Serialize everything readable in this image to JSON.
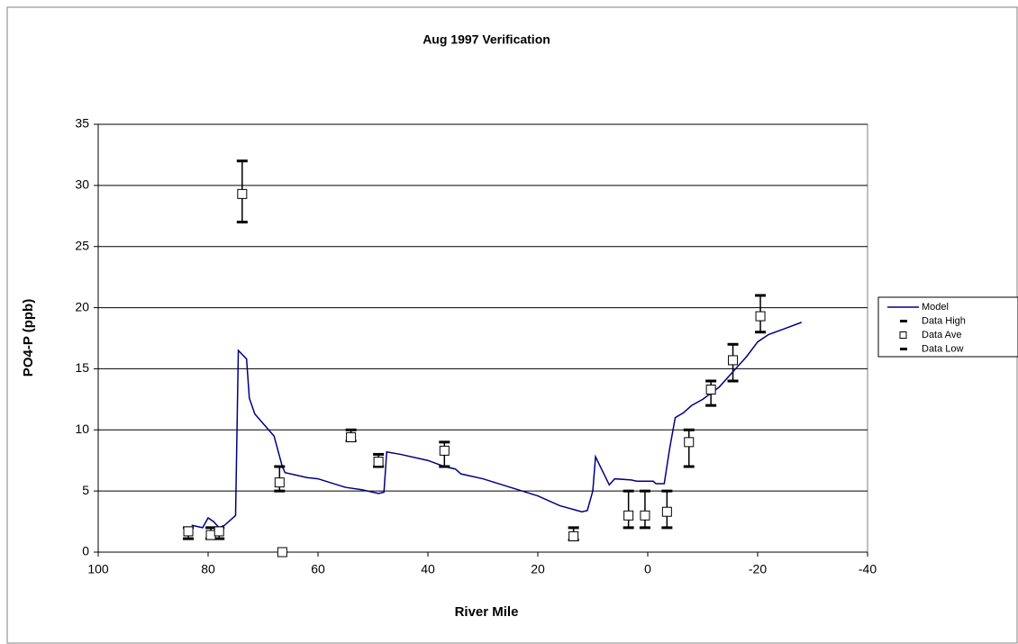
{
  "chart_data": {
    "type": "line",
    "title": "Aug 1997 Verification",
    "x_label": "River Mile",
    "y_label": "PO4-P (ppb)",
    "xlim": [
      100,
      -40
    ],
    "xticks": [
      100,
      80,
      60,
      40,
      20,
      0,
      -20,
      -40
    ],
    "ylim": [
      0,
      35
    ],
    "yticks": [
      0,
      5,
      10,
      15,
      20,
      25,
      30,
      35
    ],
    "grid": true,
    "legend": "right",
    "series": [
      {
        "name": "Model",
        "marker": "line",
        "color": "#000080",
        "x": [
          83,
          81,
          80,
          79,
          78,
          77,
          75,
          74.5,
          73,
          72.5,
          71.5,
          68,
          66.5,
          66,
          62,
          60,
          55,
          52,
          49,
          48,
          47.5,
          45,
          40,
          37,
          35,
          34,
          30,
          25,
          20,
          16,
          12,
          11,
          10,
          9.5,
          7,
          6,
          3,
          2,
          -1,
          -1.5,
          -3,
          -4,
          -5,
          -6.5,
          -8,
          -10,
          -13,
          -16,
          -18,
          -20,
          -22,
          -25,
          -28
        ],
        "values": [
          2.2,
          2.0,
          2.8,
          2.5,
          2.0,
          2.2,
          3.0,
          16.5,
          15.8,
          12.6,
          11.3,
          9.5,
          7.0,
          6.5,
          6.1,
          6.0,
          5.3,
          5.1,
          4.8,
          4.9,
          8.2,
          8.0,
          7.5,
          7.0,
          6.8,
          6.4,
          6.0,
          5.3,
          4.6,
          3.8,
          3.3,
          3.4,
          5.0,
          7.8,
          5.5,
          6.0,
          5.9,
          5.8,
          5.8,
          5.6,
          5.6,
          8.5,
          11.0,
          11.4,
          12.0,
          12.5,
          13.5,
          15.0,
          16.0,
          17.2,
          17.8,
          18.3,
          18.8
        ]
      },
      {
        "name": "Data High",
        "marker": "dash",
        "color": "#000000",
        "x": [
          83.6,
          79.5,
          78,
          73.8,
          67,
          66.5,
          54,
          49,
          37,
          13.5,
          3.5,
          0.5,
          -3.5,
          -7.5,
          -11.5,
          -15.5,
          -20.5
        ],
        "values": [
          2.0,
          2.0,
          2.0,
          32,
          7.0,
          null,
          10.0,
          8.0,
          9.0,
          2.0,
          5.0,
          5.0,
          5.0,
          10.0,
          14.0,
          17.0,
          21.0
        ]
      },
      {
        "name": "Data Ave",
        "marker": "square",
        "color": "#000000",
        "x": [
          83.6,
          79.5,
          78,
          73.8,
          67,
          66.5,
          54,
          49,
          37,
          13.5,
          3.5,
          0.5,
          -3.5,
          -7.5,
          -11.5,
          -15.5,
          -20.5
        ],
        "values": [
          1.7,
          1.4,
          1.7,
          29.3,
          5.7,
          0,
          9.4,
          7.4,
          8.3,
          1.3,
          3.0,
          3.0,
          3.3,
          9.0,
          13.3,
          15.7,
          19.3
        ]
      },
      {
        "name": "Data Low",
        "marker": "dash",
        "color": "#000000",
        "x": [
          83.6,
          79.5,
          78,
          73.8,
          67,
          66.5,
          54,
          49,
          37,
          13.5,
          3.5,
          0.5,
          -3.5,
          -7.5,
          -11.5,
          -15.5,
          -20.5
        ],
        "values": [
          1.1,
          1.1,
          1.1,
          27,
          5.0,
          null,
          9.1,
          7.0,
          7.0,
          1.0,
          2.0,
          2.0,
          2.0,
          7.0,
          12.0,
          14.0,
          18.0
        ]
      }
    ]
  }
}
